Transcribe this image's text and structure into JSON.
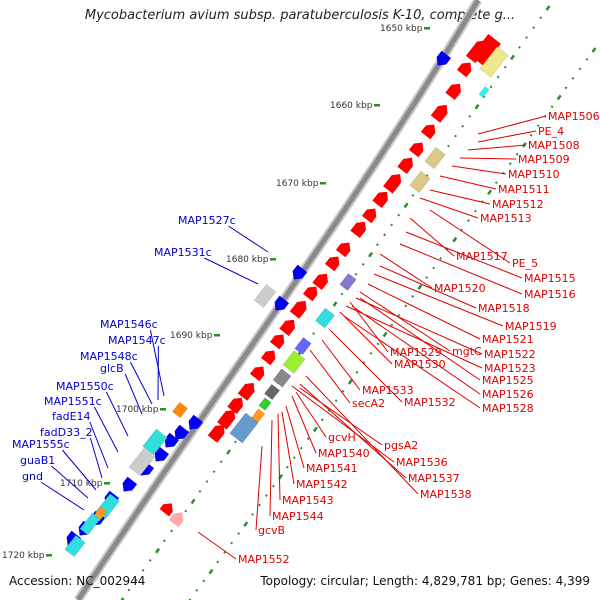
{
  "title": "Mycobacterium avium subsp. paratuberculosis K-10, complete g...",
  "accession_label": "Accession: NC_002944",
  "topology_label": "Topology: circular; Length: 4,829,781 bp; Genes: 4,399",
  "colors": {
    "backbone": "#8a8a8a",
    "forward_gene": "#ff0000",
    "reverse_gene": "#0000ee",
    "right_labels": "#dd0000",
    "left_labels": "#0000cc",
    "tick": "#2e8b2e"
  },
  "ruler": {
    "unit": "kbp",
    "ticks": [
      "1650 kbp",
      "1660 kbp",
      "1670 kbp",
      "1680 kbp",
      "1690 kbp",
      "1700 kbp",
      "1710 kbp",
      "1720 kbp"
    ]
  },
  "right_genes": [
    "MAP1506",
    "PE_4",
    "MAP1508",
    "MAP1509",
    "MAP1510",
    "MAP1511",
    "MAP1512",
    "MAP1513",
    "MAP1517",
    "PE_5",
    "MAP1515",
    "MAP1516",
    "MAP1520",
    "MAP1518",
    "MAP1519",
    "MAP1521",
    "mgtC",
    "MAP1522",
    "MAP1529",
    "MAP1523",
    "MAP1530",
    "MAP1525",
    "MAP1526",
    "MAP1533",
    "MAP1532",
    "MAP1528",
    "secA2",
    "pgsA2",
    "gcvH",
    "MAP1540",
    "MAP1536",
    "MAP1541",
    "MAP1537",
    "MAP1542",
    "MAP1538",
    "MAP1543",
    "MAP1544",
    "gcvB",
    "MAP1552"
  ],
  "left_genes": [
    "MAP1527c",
    "MAP1531c",
    "MAP1546c",
    "MAP1547c",
    "MAP1548c",
    "glcB",
    "MAP1550c",
    "MAP1551c",
    "fadE14",
    "fadD33_2",
    "MAP1555c",
    "guaB1",
    "gnd"
  ]
}
